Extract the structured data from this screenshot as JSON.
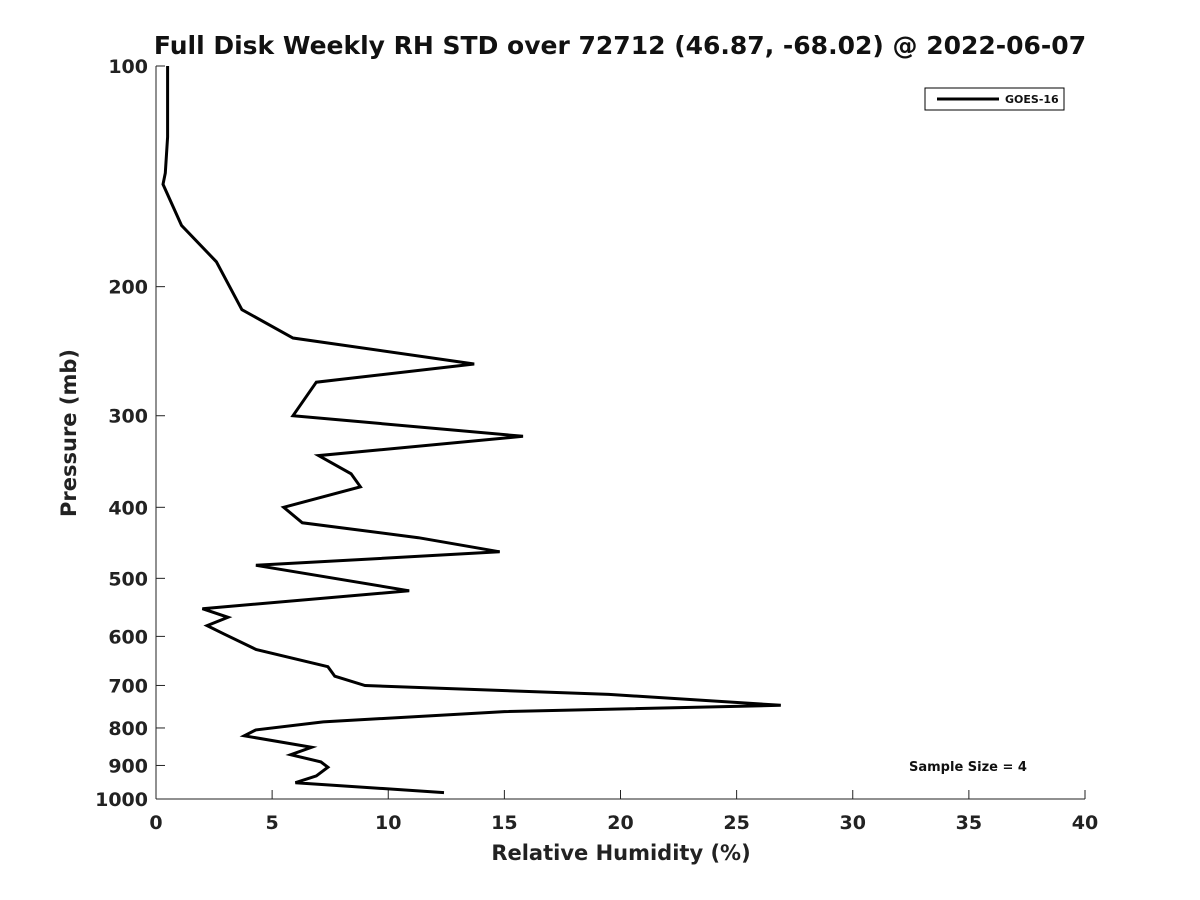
{
  "chart_data": {
    "type": "line",
    "title": "Full Disk Weekly RH STD over 72712 (46.87, -68.02) @ 2022-06-07",
    "xlabel": "Relative Humidity (%)",
    "ylabel": "Pressure (mb)",
    "xlim": [
      0,
      40
    ],
    "ylim": [
      1000,
      100
    ],
    "yscale": "log",
    "grid": false,
    "legend_position": "top-right",
    "x_ticks": [
      0,
      5,
      10,
      15,
      20,
      25,
      30,
      35,
      40
    ],
    "x_tick_labels": [
      "0",
      "5",
      "10",
      "15",
      "20",
      "25",
      "30",
      "35",
      "40"
    ],
    "y_ticks": [
      100,
      200,
      300,
      400,
      500,
      600,
      700,
      800,
      900,
      1000
    ],
    "y_tick_labels": [
      "100",
      "200",
      "300",
      "400",
      "500",
      "600",
      "700",
      "800",
      "900",
      "1000"
    ],
    "annotation": "Sample Size = 4",
    "series": [
      {
        "name": "GOES-16",
        "color": "#000000",
        "x": [
          0.5,
          0.5,
          0.5,
          0.4,
          0.3,
          1.1,
          2.6,
          3.7,
          5.9,
          13.7,
          6.9,
          5.9,
          15.8,
          7.0,
          8.4,
          8.8,
          5.5,
          6.3,
          11.3,
          14.8,
          4.3,
          10.9,
          2.0,
          3.1,
          2.2,
          2.9,
          4.3,
          7.4,
          7.7,
          9.0,
          19.5,
          26.9,
          15.0,
          7.2,
          4.3,
          3.8,
          6.7,
          5.8,
          7.1,
          7.4,
          6.9,
          6.0,
          12.4
        ],
        "y": [
          100,
          105,
          125,
          140,
          145,
          165,
          185,
          215,
          235,
          255,
          270,
          300,
          320,
          340,
          360,
          375,
          400,
          420,
          440,
          460,
          480,
          520,
          550,
          565,
          580,
          595,
          625,
          660,
          680,
          700,
          720,
          745,
          760,
          785,
          805,
          820,
          850,
          870,
          890,
          905,
          930,
          950,
          980
        ]
      }
    ]
  }
}
